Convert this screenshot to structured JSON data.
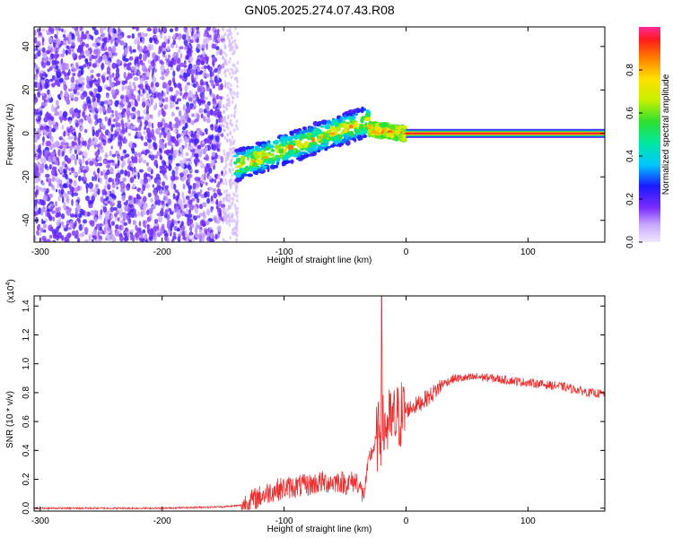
{
  "title": "GN05.2025.274.07.43.R08",
  "chart_data": [
    {
      "type": "heatmap",
      "panel": "spectrogram",
      "xlabel": "Height of straight line (km)",
      "ylabel": "Frequency (Hz)",
      "xlim": [
        -305,
        163
      ],
      "ylim": [
        -50,
        49
      ],
      "xticks": [
        -300,
        -200,
        -100,
        0,
        100
      ],
      "yticks": [
        -40,
        -20,
        0,
        20,
        40
      ],
      "tick_labels_x": [
        "-300",
        "-200",
        "-100",
        "0",
        "100"
      ],
      "tick_labels_y": [
        "-40",
        "-20",
        "0",
        "20",
        "40"
      ],
      "colorbar": {
        "label": "Normalized spectral amplitude",
        "range": [
          0,
          1
        ],
        "ticks": [
          0.0,
          0.2,
          0.4,
          0.6,
          0.8
        ],
        "tick_labels": [
          "0.0",
          "0.2",
          "0.4",
          "0.6",
          "0.8"
        ]
      },
      "features": [
        {
          "x_range": [
            -305,
            -150
          ],
          "y_range": [
            -50,
            49
          ],
          "amplitude": [
            0.05,
            0.2
          ],
          "kind": "noise"
        },
        {
          "x_range": [
            -140,
            -30
          ],
          "y_start": -15,
          "y_end": 6,
          "amplitude": [
            0.2,
            0.9
          ],
          "kind": "rising-streak"
        },
        {
          "x_range": [
            -30,
            0
          ],
          "y_start": 2,
          "y_end": 0,
          "amplitude": [
            0.3,
            0.95
          ],
          "kind": "streak"
        },
        {
          "x_range": [
            0,
            163
          ],
          "y": 0,
          "amplitude": 0.95,
          "kind": "carrier-line"
        }
      ]
    },
    {
      "type": "line",
      "panel": "snr",
      "xlabel": "Height of straight line (km)",
      "ylabel": "SNR (10 * v/v)",
      "y_multiplier": "(x10",
      "y_multiplier_exp": "4",
      "y_multiplier_close": ")",
      "xlim": [
        -305,
        163
      ],
      "ylim": [
        -0.02,
        1.47
      ],
      "xticks": [
        -300,
        -200,
        -100,
        0,
        100
      ],
      "yticks": [
        0.0,
        0.2,
        0.4,
        0.6,
        0.8,
        1.0,
        1.2,
        1.4
      ],
      "tick_labels_x": [
        "-300",
        "-200",
        "-100",
        "0",
        "100"
      ],
      "tick_labels_y": [
        "0.0",
        "0.2",
        "0.4",
        "0.6",
        "0.8",
        "1.0",
        "1.2",
        "1.4"
      ],
      "line_color": "#e83030",
      "x": [
        -305,
        -250,
        -200,
        -150,
        -135,
        -120,
        -110,
        -100,
        -90,
        -80,
        -70,
        -60,
        -55,
        -50,
        -45,
        -40,
        -35,
        -30,
        -25,
        -20,
        -15,
        -10,
        -5,
        0,
        10,
        20,
        30,
        40,
        50,
        60,
        70,
        80,
        90,
        100,
        110,
        120,
        130,
        140,
        150,
        163
      ],
      "y": [
        0.0,
        0.0,
        0.0,
        0.01,
        0.02,
        0.08,
        0.12,
        0.14,
        0.15,
        0.16,
        0.18,
        0.18,
        0.19,
        0.17,
        0.18,
        0.19,
        0.08,
        0.35,
        0.45,
        0.55,
        0.58,
        0.6,
        0.64,
        0.68,
        0.72,
        0.78,
        0.86,
        0.9,
        0.9,
        0.91,
        0.9,
        0.89,
        0.88,
        0.87,
        0.86,
        0.85,
        0.84,
        0.82,
        0.8,
        0.79
      ],
      "spike": {
        "x": -20,
        "y": 1.47
      }
    }
  ]
}
